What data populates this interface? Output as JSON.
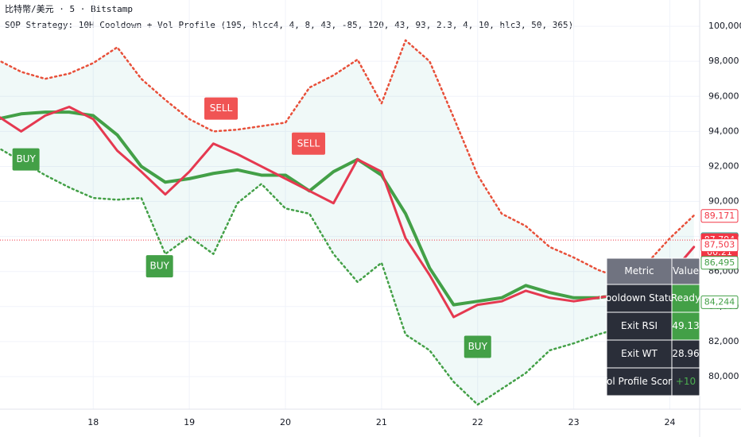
{
  "chart_data": {
    "type": "line",
    "symbol": "比特幣/美元 · 5 · Bitstamp",
    "title": "SOP Strategy: 10H Cooldown + Vol Profile (195, hlcc4, 4, 8, 43, -85, 120, 43, 93, 2.3, 4, 10, hlc3, 50, 365)",
    "xlim": [
      17.03,
      24.31
    ],
    "xticks": [
      {
        "value": 18,
        "label": "18"
      },
      {
        "value": 19,
        "label": "19"
      },
      {
        "value": 20,
        "label": "20"
      },
      {
        "value": 21,
        "label": "21"
      },
      {
        "value": 22,
        "label": "22"
      },
      {
        "value": 23,
        "label": "23"
      },
      {
        "value": 24,
        "label": "24"
      }
    ],
    "ylim": [
      78140,
      101500
    ],
    "yticks": [
      {
        "value": 80000,
        "label": "80,000"
      },
      {
        "value": 82000,
        "label": "82,000"
      },
      {
        "value": 84000,
        "label": "84,000"
      },
      {
        "value": 86000,
        "label": "86,000"
      },
      {
        "value": 88000,
        "label": "88,000"
      },
      {
        "value": 90000,
        "label": "90,000"
      },
      {
        "value": 92000,
        "label": "92,000"
      },
      {
        "value": 94000,
        "label": "94,000"
      },
      {
        "value": 96000,
        "label": "96,000"
      },
      {
        "value": 98000,
        "label": "98,000"
      },
      {
        "value": 100000,
        "label": "100,000"
      }
    ],
    "grid": true,
    "x": [
      17,
      17.25,
      17.5,
      17.75,
      18,
      18.25,
      18.5,
      18.75,
      19,
      19.25,
      19.5,
      19.75,
      20,
      20.25,
      20.5,
      20.75,
      21,
      21.25,
      21.5,
      21.75,
      22,
      22.25,
      22.5,
      22.75,
      23,
      23.25,
      23.5,
      23.75,
      24,
      24.25
    ],
    "series": [
      {
        "name": "Upper Band",
        "color": "#e8503a",
        "dash": true,
        "width": 2.5,
        "values": [
          98100,
          97400,
          97000,
          97300,
          97900,
          98800,
          97000,
          95800,
          94700,
          94000,
          94100,
          94300,
          94500,
          96500,
          97200,
          98100,
          95600,
          99200,
          98000,
          94800,
          91500,
          89300,
          88600,
          87400,
          86800,
          86100,
          85600,
          86400,
          87900,
          89200
        ]
      },
      {
        "name": "Lower Band",
        "color": "#43a047",
        "dash": true,
        "width": 2.5,
        "values": [
          93100,
          92300,
          91500,
          90800,
          90200,
          90100,
          90200,
          87000,
          88000,
          87000,
          89900,
          91000,
          89600,
          89300,
          87000,
          85400,
          86500,
          82400,
          81500,
          79700,
          78400,
          79300,
          80200,
          81500,
          81900,
          82400,
          82800,
          83000,
          83300,
          84200
        ]
      },
      {
        "name": "Slow MA",
        "color": "#43a047",
        "dash": false,
        "width": 4,
        "values": [
          94700,
          95000,
          95100,
          95100,
          94900,
          93800,
          92000,
          91100,
          91300,
          91600,
          91800,
          91500,
          91500,
          90600,
          91700,
          92400,
          91500,
          89300,
          86200,
          84100,
          84300,
          84500,
          85200,
          84800,
          84500,
          84500,
          84700,
          84900,
          85100,
          86000
        ]
      },
      {
        "name": "Fast MA",
        "color": "#e53950",
        "dash": false,
        "width": 3,
        "values": [
          94900,
          94000,
          94900,
          95400,
          94700,
          92900,
          91700,
          90400,
          91700,
          93300,
          92700,
          92000,
          91300,
          90600,
          89900,
          92400,
          91700,
          87900,
          85800,
          83400,
          84100,
          84300,
          84900,
          84500,
          84300,
          84500,
          84700,
          85100,
          85800,
          87400
        ]
      }
    ],
    "signals": [
      {
        "label": "BUY",
        "x": 17.3,
        "y": 92400,
        "color": "#43a047"
      },
      {
        "label": "BUY",
        "x": 18.69,
        "y": 86300,
        "color": "#43a047"
      },
      {
        "label": "SELL",
        "x": 19.33,
        "y": 95300,
        "color": "#f05454"
      },
      {
        "label": "SELL",
        "x": 20.24,
        "y": 93300,
        "color": "#f05454"
      },
      {
        "label": "BUY",
        "x": 22.0,
        "y": 81700,
        "color": "#43a047"
      }
    ],
    "price_labels": [
      {
        "value": 89171,
        "label": "89,171",
        "color": "#f23645",
        "filled": false
      },
      {
        "value": 87848,
        "label": "87,848",
        "color": "#26a69a",
        "filled": false
      },
      {
        "value": 87794,
        "label": "87,794",
        "color": "#f23645",
        "filled": true
      },
      {
        "value": 87503,
        "label": "87,503",
        "color": "#f23645",
        "filled": false
      },
      {
        "value": 86495,
        "label": "86,495",
        "color": "#43a047",
        "filled": false
      },
      {
        "value": 84244,
        "label": "84,244",
        "color": "#43a047",
        "filled": false
      }
    ],
    "countdown": "00:21",
    "last_price": 87794,
    "table": {
      "header": [
        "Metric",
        "Value"
      ],
      "rows": [
        [
          "Cooldown Status",
          "Ready"
        ],
        [
          "Exit RSI",
          "49.13"
        ],
        [
          "Exit WT",
          "28.96"
        ],
        [
          "Vol Profile Score",
          "+10"
        ]
      ]
    }
  }
}
